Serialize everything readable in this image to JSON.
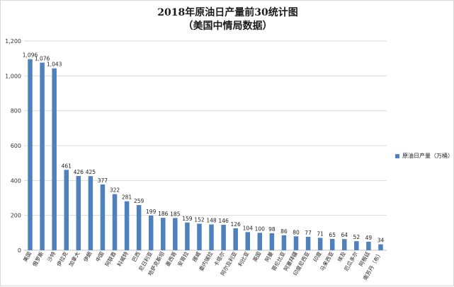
{
  "chart_data": {
    "type": "bar",
    "title": "2018年原油日产量前30统计图",
    "subtitle": "（美国中情局数据）",
    "categories": [
      "美国",
      "俄罗斯",
      "沙特",
      "伊拉克",
      "加拿大",
      "伊朗",
      "中国",
      "阿联酋",
      "科威特",
      "巴西",
      "尼日利亚",
      "哈萨克斯坦",
      "墨西哥",
      "安哥拉",
      "挪威",
      "委内瑞拉",
      "卡塔尔",
      "阿尔及利亚",
      "利比亚",
      "英国",
      "阿曼",
      "哥伦比亚",
      "阿塞拜疆",
      "印度尼西亚",
      "印度",
      "马来西亚",
      "埃及",
      "厄瓜多尔",
      "阿根廷",
      "南苏丹（布）"
    ],
    "values": [
      1096,
      1076,
      1043,
      461,
      426,
      425,
      377,
      322,
      281,
      259,
      199,
      186,
      185,
      159,
      152,
      148,
      146,
      126,
      104,
      100,
      98,
      86,
      80,
      77,
      71,
      65,
      64,
      52,
      49,
      34
    ],
    "value_labels": [
      "1,096",
      "1,076",
      "1,043",
      "461",
      "426",
      "425",
      "377",
      "322",
      "281",
      "259",
      "199",
      "186",
      "185",
      "159",
      "152",
      "148",
      "146",
      "126",
      "104",
      "100",
      "98",
      "86",
      "80",
      "77",
      "71",
      "65",
      "64",
      "52",
      "49",
      "34"
    ],
    "ylim": [
      0,
      1200
    ],
    "yticks": [
      0,
      200,
      400,
      600,
      800,
      1000,
      1200
    ],
    "ytick_labels": [
      "0",
      "200",
      "400",
      "600",
      "800",
      "1,000",
      "1,200"
    ],
    "series": [
      {
        "name": "原油日产量（万桶）",
        "color": "#4f81bd"
      }
    ],
    "legend": "right",
    "grid": true,
    "xlabel": "",
    "ylabel": ""
  }
}
